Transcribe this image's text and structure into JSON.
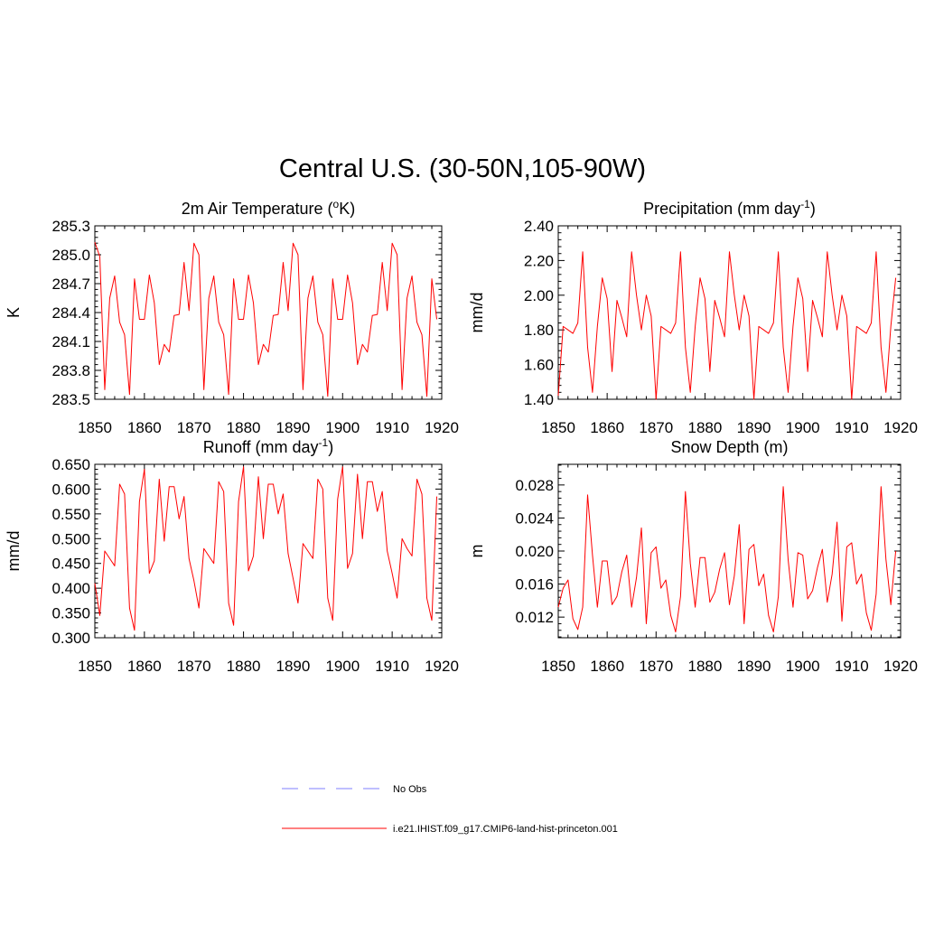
{
  "figure": {
    "title": "Central U.S. (30-50N,105-90W)",
    "line_color": "#ff0000",
    "obs_color": "#9999ff"
  },
  "legend": {
    "obs_label": "No Obs",
    "model_label": "i.e21.IHIST.f09_g17.CMIP6-land-hist-princeton.001"
  },
  "chart_data": [
    {
      "type": "line",
      "title_main": "2m Air Temperature (",
      "title_sup": "o",
      "title_end": "K)",
      "ylabel": "K",
      "xlim": [
        1850,
        1920
      ],
      "ylim": [
        283.5,
        285.3
      ],
      "xticks": [
        "1850",
        "1860",
        "1870",
        "1880",
        "1890",
        "1900",
        "1910",
        "1920"
      ],
      "yticks": [
        "283.5",
        "283.8",
        "284.1",
        "284.4",
        "284.7",
        "285.0",
        "285.3"
      ],
      "x_start": 1850,
      "series": [
        {
          "values": [
            285.13,
            284.98,
            283.6,
            284.55,
            284.78,
            284.3,
            284.17,
            283.55,
            284.75,
            284.33,
            284.33,
            284.79,
            284.5,
            283.86,
            284.07,
            283.99,
            284.37,
            284.38,
            284.92,
            284.42,
            285.12,
            285.0,
            283.6,
            284.55,
            284.78,
            284.3,
            284.17,
            283.55,
            284.75,
            284.33,
            284.33,
            284.79,
            284.5,
            283.86,
            284.07,
            283.99,
            284.37,
            284.38,
            284.92,
            284.42,
            285.12,
            285.0,
            283.6,
            284.55,
            284.78,
            284.3,
            284.17,
            283.53,
            284.75,
            284.33,
            284.33,
            284.79,
            284.5,
            283.86,
            284.07,
            283.99,
            284.37,
            284.38,
            284.92,
            284.42,
            285.12,
            285.0,
            283.6,
            284.55,
            284.78,
            284.3,
            284.17,
            283.53,
            284.75,
            284.33
          ]
        }
      ]
    },
    {
      "type": "line",
      "title_main": "Precipitation (mm day",
      "title_sup": "-1",
      "title_end": ")",
      "ylabel": "mm/d",
      "xlim": [
        1850,
        1920
      ],
      "ylim": [
        1.4,
        2.4
      ],
      "xticks": [
        "1850",
        "1860",
        "1870",
        "1880",
        "1890",
        "1900",
        "1910",
        "1920"
      ],
      "yticks": [
        "1.40",
        "1.60",
        "1.80",
        "2.00",
        "2.20",
        "2.40"
      ],
      "x_start": 1850,
      "series": [
        {
          "values": [
            1.42,
            1.82,
            1.8,
            1.78,
            1.84,
            2.25,
            1.7,
            1.44,
            1.82,
            2.1,
            1.98,
            1.56,
            1.97,
            1.87,
            1.76,
            2.25,
            2.0,
            1.8,
            2.0,
            1.88,
            1.4,
            1.82,
            1.8,
            1.78,
            1.84,
            2.25,
            1.7,
            1.44,
            1.82,
            2.1,
            1.98,
            1.56,
            1.97,
            1.87,
            1.76,
            2.25,
            2.0,
            1.8,
            2.0,
            1.88,
            1.4,
            1.82,
            1.8,
            1.78,
            1.84,
            2.25,
            1.7,
            1.44,
            1.82,
            2.1,
            1.98,
            1.56,
            1.97,
            1.87,
            1.76,
            2.25,
            2.0,
            1.8,
            2.0,
            1.88,
            1.4,
            1.82,
            1.8,
            1.78,
            1.84,
            2.25,
            1.7,
            1.44,
            1.82,
            2.1
          ]
        }
      ]
    },
    {
      "type": "line",
      "title_main": "Runoff (mm day",
      "title_sup": "-1",
      "title_end": ")",
      "ylabel": "mm/d",
      "xlim": [
        1850,
        1920
      ],
      "ylim": [
        0.3,
        0.65
      ],
      "xticks": [
        "1850",
        "1860",
        "1870",
        "1880",
        "1890",
        "1900",
        "1910",
        "1920"
      ],
      "yticks": [
        "0.300",
        "0.350",
        "0.400",
        "0.450",
        "0.500",
        "0.550",
        "0.600",
        "0.650"
      ],
      "x_start": 1850,
      "series": [
        {
          "values": [
            0.41,
            0.345,
            0.475,
            0.46,
            0.445,
            0.61,
            0.59,
            0.36,
            0.315,
            0.575,
            0.64,
            0.43,
            0.455,
            0.62,
            0.495,
            0.605,
            0.605,
            0.54,
            0.585,
            0.46,
            0.415,
            0.36,
            0.48,
            0.465,
            0.45,
            0.615,
            0.595,
            0.37,
            0.325,
            0.575,
            0.645,
            0.435,
            0.465,
            0.625,
            0.5,
            0.61,
            0.61,
            0.55,
            0.59,
            0.47,
            0.42,
            0.37,
            0.49,
            0.475,
            0.46,
            0.62,
            0.6,
            0.38,
            0.335,
            0.58,
            0.645,
            0.44,
            0.47,
            0.63,
            0.5,
            0.615,
            0.615,
            0.555,
            0.595,
            0.475,
            0.43,
            0.38,
            0.5,
            0.48,
            0.465,
            0.62,
            0.59,
            0.38,
            0.335,
            0.585
          ]
        }
      ]
    },
    {
      "type": "line",
      "title_main": "Snow Depth (m)",
      "title_sup": "",
      "title_end": "",
      "ylabel": "m",
      "xlim": [
        1850,
        1920
      ],
      "ylim": [
        0.0095,
        0.0305
      ],
      "xticks": [
        "1850",
        "1860",
        "1870",
        "1880",
        "1890",
        "1900",
        "1910",
        "1920"
      ],
      "yticks": [
        "0.012",
        "0.016",
        "0.020",
        "0.024",
        "0.028"
      ],
      "ytick_values": [
        0.012,
        0.016,
        0.02,
        0.024,
        0.028
      ],
      "x_start": 1850,
      "series": [
        {
          "values": [
            0.0132,
            0.0155,
            0.0165,
            0.0118,
            0.0105,
            0.0132,
            0.0268,
            0.0195,
            0.0132,
            0.0188,
            0.0188,
            0.0135,
            0.0145,
            0.0175,
            0.0195,
            0.0132,
            0.0168,
            0.0228,
            0.0112,
            0.0198,
            0.0205,
            0.0155,
            0.0165,
            0.0122,
            0.0102,
            0.0145,
            0.0272,
            0.0185,
            0.0132,
            0.0192,
            0.0192,
            0.0138,
            0.015,
            0.0178,
            0.0198,
            0.0135,
            0.017,
            0.0232,
            0.0112,
            0.0202,
            0.0208,
            0.0158,
            0.0172,
            0.0122,
            0.0102,
            0.0145,
            0.0278,
            0.019,
            0.0132,
            0.0198,
            0.0195,
            0.0142,
            0.0152,
            0.018,
            0.0202,
            0.0138,
            0.0172,
            0.0235,
            0.0115,
            0.0205,
            0.021,
            0.016,
            0.0172,
            0.0125,
            0.0104,
            0.0148,
            0.0278,
            0.019,
            0.0135,
            0.02
          ]
        }
      ]
    }
  ]
}
